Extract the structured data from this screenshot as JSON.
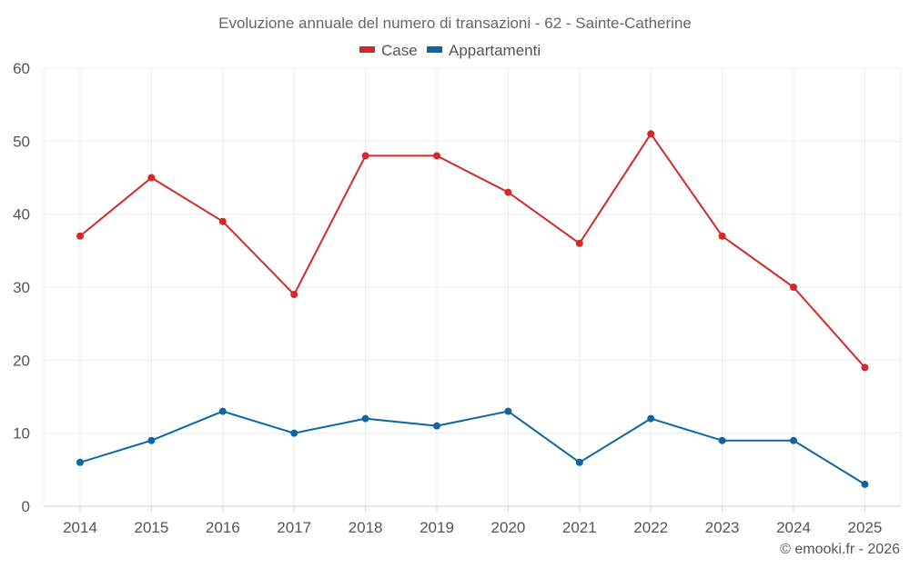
{
  "chart_data": {
    "type": "line",
    "title": "Evoluzione annuale del numero di transazioni - 62 - Sainte-Catherine",
    "categories": [
      "2014",
      "2015",
      "2016",
      "2017",
      "2018",
      "2019",
      "2020",
      "2021",
      "2022",
      "2023",
      "2024",
      "2025"
    ],
    "series": [
      {
        "name": "Case",
        "color": "#d22a2a",
        "values": [
          37,
          45,
          39,
          29,
          48,
          48,
          43,
          36,
          51,
          37,
          30,
          19
        ]
      },
      {
        "name": "Appartamenti",
        "color": "#0d66a0",
        "values": [
          6,
          9,
          13,
          10,
          12,
          11,
          13,
          6,
          12,
          9,
          9,
          3
        ]
      }
    ],
    "xlabel": "",
    "ylabel": "",
    "ylim": [
      0,
      60
    ],
    "yticks": [
      "0",
      "10",
      "20",
      "30",
      "40",
      "50",
      "60"
    ],
    "grid": true,
    "legend_position": "top-center"
  },
  "credit": "© emooki.fr - 2026"
}
